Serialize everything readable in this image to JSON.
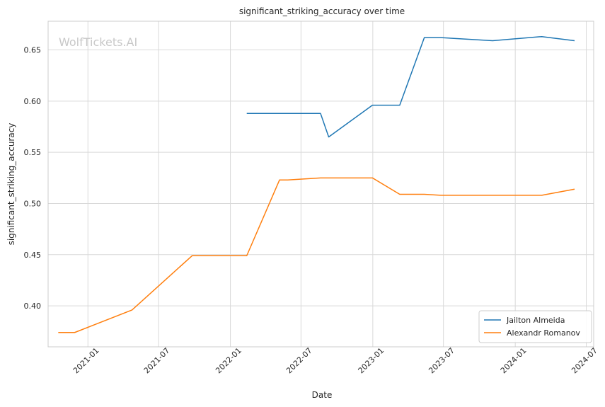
{
  "chart_data": {
    "type": "line",
    "title": "significant_striking_accuracy over time",
    "xlabel": "Date",
    "ylabel": "significant_striking_accuracy",
    "watermark": "WolfTickets.AI",
    "x_ticks": [
      "2021-01",
      "2021-07",
      "2022-01",
      "2022-07",
      "2023-01",
      "2023-07",
      "2024-01",
      "2024-07"
    ],
    "y_ticks": [
      "0.40",
      "0.45",
      "0.50",
      "0.55",
      "0.60",
      "0.65"
    ],
    "xlim": [
      "2020-09-21",
      "2024-07-20"
    ],
    "ylim": [
      0.36,
      0.678
    ],
    "grid": true,
    "legend_position": "bottom-right",
    "series": [
      {
        "name": "Jailton Almeida",
        "color": "#1f77b4",
        "points": [
          {
            "x": "2022-02-12",
            "y": 0.588
          },
          {
            "x": "2022-03-26",
            "y": 0.588
          },
          {
            "x": "2022-08-20",
            "y": 0.588
          },
          {
            "x": "2022-09-10",
            "y": 0.565
          },
          {
            "x": "2022-12-31",
            "y": 0.596
          },
          {
            "x": "2023-03-11",
            "y": 0.596
          },
          {
            "x": "2023-05-13",
            "y": 0.662
          },
          {
            "x": "2023-06-24",
            "y": 0.662
          },
          {
            "x": "2023-11-04",
            "y": 0.659
          },
          {
            "x": "2024-03-09",
            "y": 0.663
          },
          {
            "x": "2024-06-01",
            "y": 0.659
          }
        ]
      },
      {
        "name": "Alexandr Romanov",
        "color": "#ff7f0e",
        "points": [
          {
            "x": "2020-10-17",
            "y": 0.374
          },
          {
            "x": "2020-11-28",
            "y": 0.374
          },
          {
            "x": "2021-04-24",
            "y": 0.396
          },
          {
            "x": "2021-09-25",
            "y": 0.449
          },
          {
            "x": "2022-02-12",
            "y": 0.449
          },
          {
            "x": "2022-05-07",
            "y": 0.523
          },
          {
            "x": "2022-05-28",
            "y": 0.523
          },
          {
            "x": "2022-08-20",
            "y": 0.525
          },
          {
            "x": "2022-12-31",
            "y": 0.525
          },
          {
            "x": "2023-03-11",
            "y": 0.509
          },
          {
            "x": "2023-05-13",
            "y": 0.509
          },
          {
            "x": "2023-06-24",
            "y": 0.508
          },
          {
            "x": "2024-03-09",
            "y": 0.508
          },
          {
            "x": "2024-06-01",
            "y": 0.514
          }
        ]
      }
    ]
  }
}
